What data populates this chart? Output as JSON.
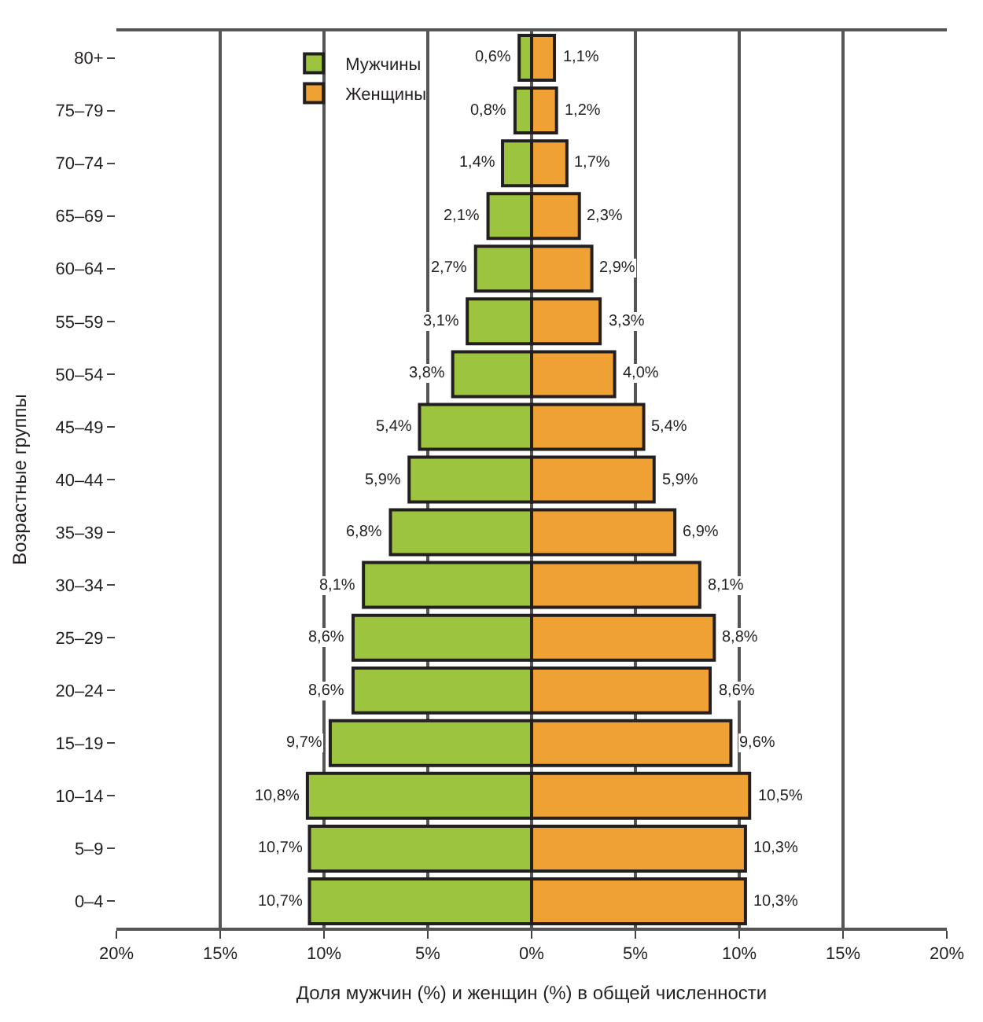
{
  "chart_data": {
    "type": "bar",
    "orientation": "horizontal",
    "xlabel": "Доля мужчин (%) и женщин (%) в общей численности",
    "ylabel": "Возрастные группы",
    "categories": [
      "80+",
      "75–79",
      "70–74",
      "65–69",
      "60–64",
      "55–59",
      "50–54",
      "45–49",
      "40–44",
      "35–39",
      "30–34",
      "25–29",
      "20–24",
      "15–19",
      "10–14",
      "5–9",
      "0–4"
    ],
    "series": [
      {
        "name": "Мужчины",
        "color": "#9dc43f",
        "base": [
          -0.6,
          -0.8,
          -1.4,
          -2.1,
          -2.7,
          -3.1,
          -3.8,
          -5.4,
          -5.9,
          -6.8,
          -8.1,
          -8.6,
          -8.6,
          -9.7,
          -10.8,
          -10.7,
          -10.7
        ],
        "values": [
          0.6,
          0.8,
          1.4,
          2.1,
          2.7,
          3.1,
          3.8,
          5.4,
          5.9,
          6.8,
          8.1,
          8.6,
          8.6,
          9.7,
          10.8,
          10.7,
          10.7
        ],
        "value_labels": [
          "0,6%",
          "0,8%",
          "1,4%",
          "2,1%",
          "2,7%",
          "3,1%",
          "3,8%",
          "5,4%",
          "5,9%",
          "6,8%",
          "8,1%",
          "8,6%",
          "8,6%",
          "9,7%",
          "10,8%",
          "10,7%",
          "10,7%"
        ]
      },
      {
        "name": "Женщины",
        "color": "#f0a133",
        "values": [
          1.1,
          1.2,
          1.7,
          2.3,
          2.9,
          3.3,
          4.0,
          5.4,
          5.9,
          6.9,
          8.1,
          8.8,
          8.6,
          9.6,
          10.5,
          10.3,
          10.3
        ],
        "value_labels": [
          "1,1%",
          "1,2%",
          "1,7%",
          "2,3%",
          "2,9%",
          "3,3%",
          "4,0%",
          "5,4%",
          "5,9%",
          "6,9%",
          "8,1%",
          "8,8%",
          "8,6%",
          "9,6%",
          "10,5%",
          "10,3%",
          "10,3%"
        ]
      }
    ],
    "xlim": [
      -20,
      20
    ],
    "xticks": [
      {
        "value": -20,
        "label": "20%"
      },
      {
        "value": -15,
        "label": "15%"
      },
      {
        "value": -10,
        "label": "10%"
      },
      {
        "value": -5,
        "label": "5%"
      },
      {
        "value": 0,
        "label": "0%"
      },
      {
        "value": 5,
        "label": "5%"
      },
      {
        "value": 10,
        "label": "10%"
      },
      {
        "value": 15,
        "label": "15%"
      },
      {
        "value": 20,
        "label": "20%"
      }
    ],
    "grid": "x",
    "legend": "top left"
  }
}
